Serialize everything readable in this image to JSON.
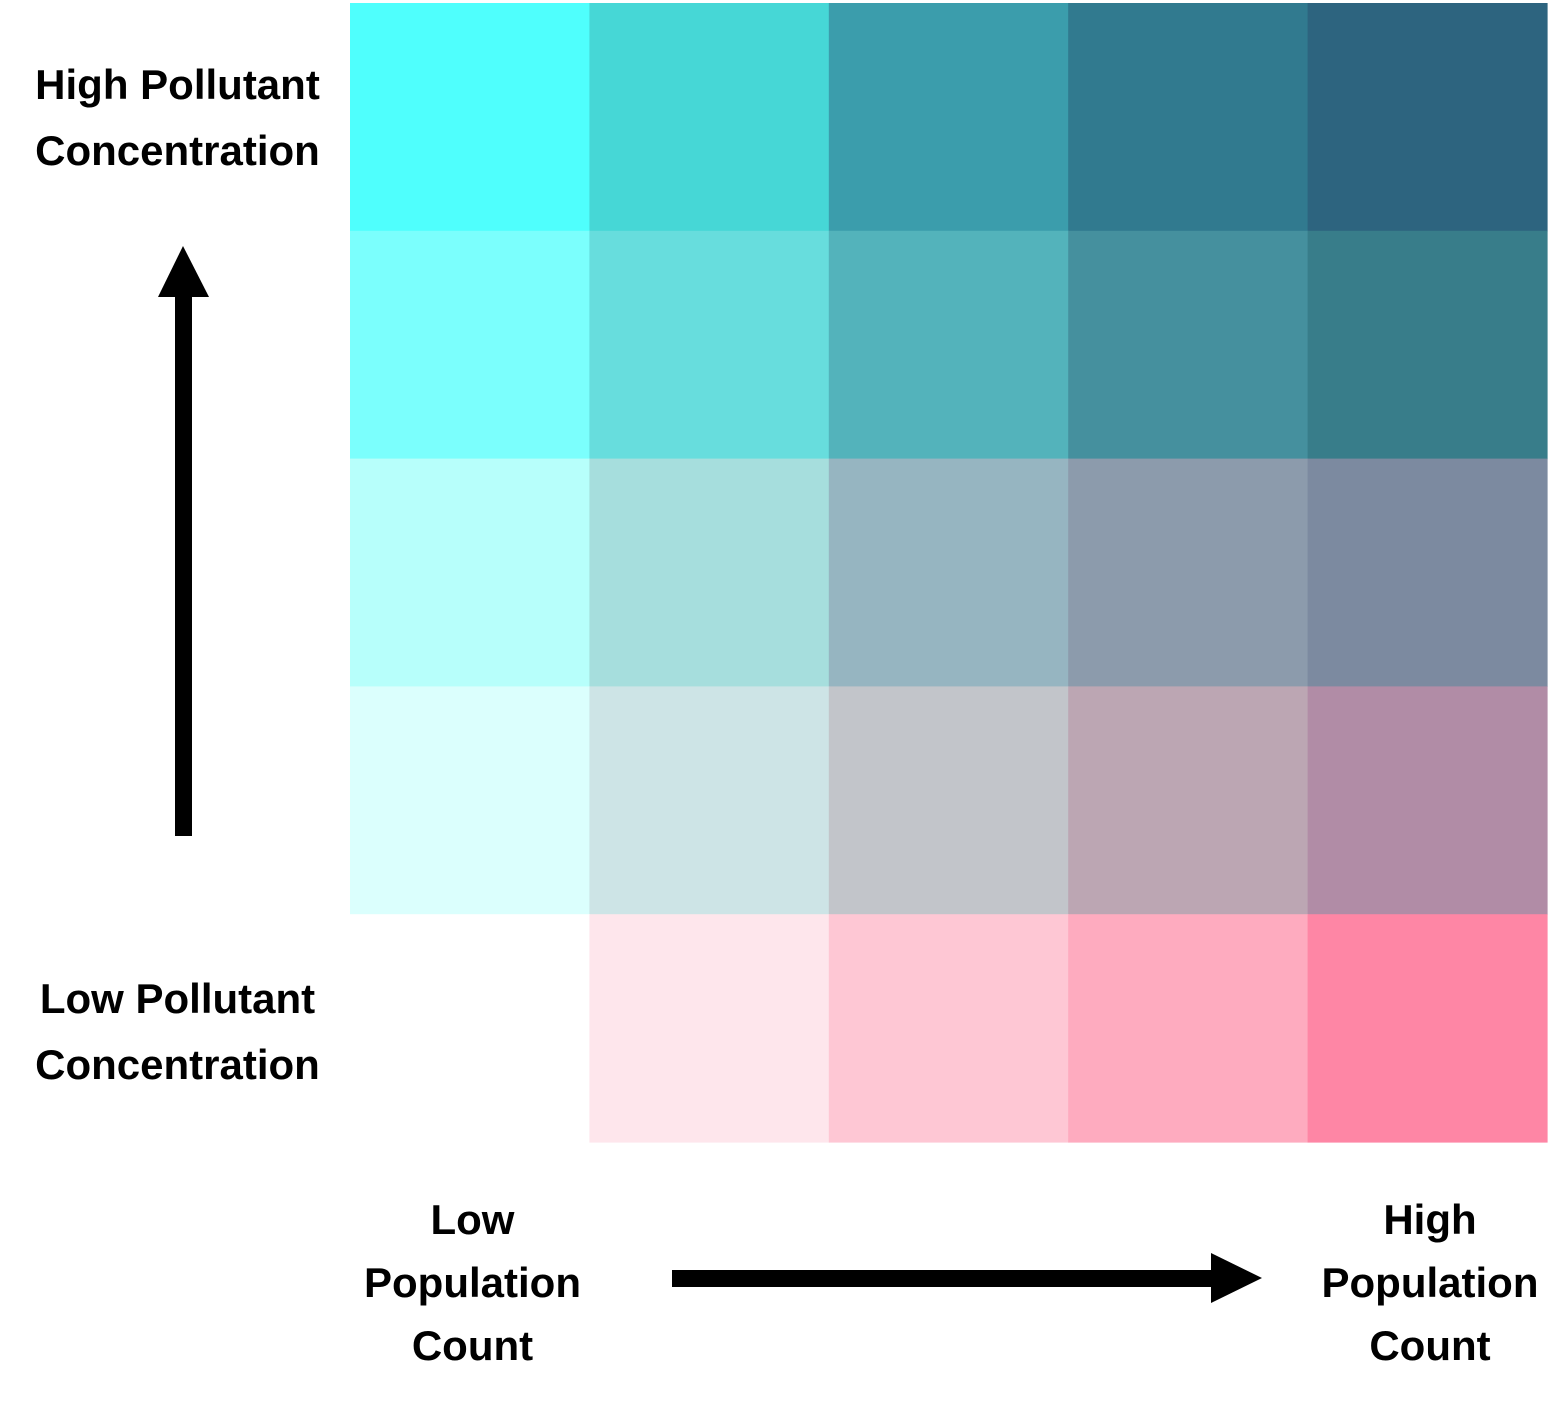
{
  "chart_data": {
    "type": "heatmap",
    "x_axis": {
      "low_label": [
        "Low",
        "Population",
        "Count"
      ],
      "high_label": [
        "High",
        "Population",
        "Count"
      ]
    },
    "y_axis": {
      "high_label": [
        "High Pollutant",
        "Concentration"
      ],
      "low_label": [
        "Low Pollutant",
        "Concentration"
      ]
    },
    "rows_top_to_bottom": [
      [
        "#4ffffd",
        "#46d7d6",
        "#3b9dac",
        "#317a8f",
        "#2d647f"
      ],
      [
        "#7bfffd",
        "#67dddd",
        "#53b3bb",
        "#45909e",
        "#387d8a"
      ],
      [
        "#b7fffb",
        "#a6dedd",
        "#96b5c1",
        "#8c9bac",
        "#7c8aa0"
      ],
      [
        "#dbfffd",
        "#cde4e6",
        "#c2c5ca",
        "#bca6b3",
        "#b18ca6"
      ],
      [
        "#ffffff",
        "#fee6ec",
        "#fec7d4",
        "#feabbf",
        "#fe86a5"
      ]
    ]
  }
}
